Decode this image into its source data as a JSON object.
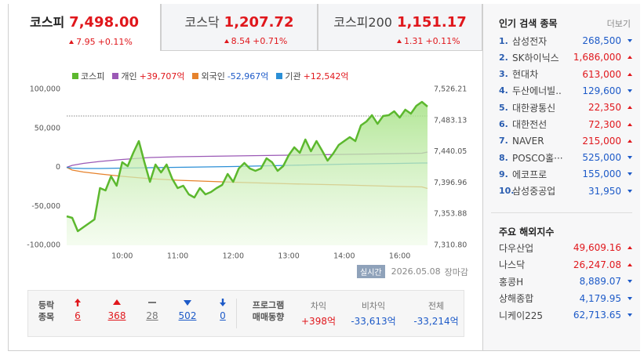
{
  "indices": [
    {
      "name": "코스피",
      "value": "7,498.00",
      "change": "7.95",
      "rate": "+0.11%",
      "direction": "up"
    },
    {
      "name": "코스닥",
      "value": "1,207.72",
      "change": "8.54",
      "rate": "+0.71%",
      "direction": "up"
    },
    {
      "name": "코스피200",
      "value": "1,151.17",
      "change": "1.31",
      "rate": "+0.11%",
      "direction": "up"
    }
  ],
  "chart_data": {
    "type": "line",
    "xlim": [
      0,
      65
    ],
    "xticks": [
      {
        "value": 10,
        "label": "10:00"
      },
      {
        "value": 20,
        "label": "11:00"
      },
      {
        "value": 30,
        "label": "12:00"
      },
      {
        "value": 40,
        "label": "13:00"
      },
      {
        "value": 50,
        "label": "14:00"
      },
      {
        "value": 60,
        "label": "16:00"
      }
    ],
    "ylim": [
      -100000,
      100000
    ],
    "yticks": [
      {
        "value": 100000,
        "label": "100,000"
      },
      {
        "value": 50000,
        "label": "50,000"
      },
      0,
      {
        "value": -50000,
        "label": "-50,000"
      },
      {
        "value": -100000,
        "label": "-100,000"
      }
    ],
    "y2lim": [
      7310.8,
      7526.21
    ],
    "y2ticks": [
      {
        "value": 7526.21,
        "label": "7,526.21"
      },
      {
        "value": 7483.13,
        "label": "7,483.13"
      },
      {
        "value": 7440.05,
        "label": "7,440.05"
      },
      {
        "value": 7396.96,
        "label": "7,396.96"
      },
      {
        "value": 7353.88,
        "label": "7,353.88"
      },
      {
        "value": 7310.8,
        "label": "7,310.80"
      }
    ],
    "reference_line": {
      "value": 7489.4,
      "axis": "y2"
    },
    "series": [
      {
        "name": "코스피",
        "color": "#5cb82e",
        "axis": "y2",
        "fill": true,
        "values": [
          7350.8,
          7348.7,
          7330.3,
          7335.7,
          7341.1,
          7346.5,
          7389.8,
          7386.6,
          7406.1,
          7393.1,
          7425.5,
          7420.1,
          7438.5,
          7454.8,
          7425.5,
          7398.5,
          7422.3,
          7411.5,
          7422.3,
          7402.8,
          7389.8,
          7393.1,
          7381.2,
          7376.8,
          7389.8,
          7381.2,
          7384.4,
          7389.8,
          7394.1,
          7409.3,
          7398.5,
          7416.9,
          7424.5,
          7416.9,
          7413.6,
          7416.9,
          7431.0,
          7425.5,
          7413.6,
          7420.1,
          7435.3,
          7446.1,
          7438.5,
          7456.9,
          7440.7,
          7454.8,
          7441.8,
          7427.7,
          7437.4,
          7449.4,
          7454.8,
          7460.2,
          7454.8,
          7476.4,
          7481.8,
          7490.5,
          7478.6,
          7489.4,
          7490.5,
          7495.9,
          7487.2,
          7498.1,
          7492.7,
          7503.5,
          7508.9,
          7502.4
        ]
      },
      {
        "name": "개인",
        "legend_value": "+39,707억",
        "legend_value_color": "#e0171c",
        "color": "#9b59b6",
        "x": [
          0,
          1,
          3,
          6,
          10,
          15,
          20,
          30,
          40,
          50,
          60,
          64,
          65
        ],
        "values": [
          0,
          2500,
          5000,
          7500,
          10100,
          12600,
          13600,
          14600,
          15600,
          16600,
          17600,
          18100,
          19600
        ]
      },
      {
        "name": "외국인",
        "legend_value": "-52,967억",
        "legend_value_color": "#1d5ac8",
        "color": "#e6822c",
        "x": [
          0,
          1,
          3,
          6,
          10,
          15,
          20,
          30,
          40,
          50,
          60,
          64,
          65
        ],
        "values": [
          0,
          -3500,
          -6000,
          -8500,
          -11600,
          -14600,
          -16600,
          -19100,
          -21100,
          -22600,
          -24600,
          -25100,
          -27100
        ]
      },
      {
        "name": "기관",
        "legend_value": "+12,542억",
        "legend_value_color": "#e0171c",
        "color": "#2b8fd6",
        "x": [
          0,
          1,
          3,
          6,
          10,
          15,
          20,
          30,
          40,
          50,
          60,
          64,
          65
        ],
        "values": [
          0,
          -1000,
          -1500,
          -1500,
          -1000,
          -500,
          0,
          1000,
          2500,
          4000,
          5000,
          5500,
          5500
        ]
      }
    ]
  },
  "status": {
    "badge": "실시간",
    "date": "2026.05.08",
    "state": "장마감"
  },
  "breadth": {
    "label": [
      "등락",
      "종목"
    ],
    "items": [
      {
        "kind": "limit-up",
        "value": 6
      },
      {
        "kind": "up",
        "value": 368
      },
      {
        "kind": "flat",
        "value": 28
      },
      {
        "kind": "down",
        "value": 502
      },
      {
        "kind": "limit-down",
        "value": 0
      }
    ]
  },
  "program": {
    "label": [
      "프로그램",
      "매매동향"
    ],
    "columns": [
      {
        "name": "차익",
        "value": "+398억",
        "direction": "up"
      },
      {
        "name": "비차익",
        "value": "-33,613억",
        "direction": "down"
      },
      {
        "name": "전체",
        "value": "-33,214억",
        "direction": "down"
      }
    ]
  },
  "popular": {
    "title": "인기 검색 종목",
    "more": "더보기",
    "items": [
      {
        "rank": "1.",
        "name": "삼성전자",
        "price": "268,500",
        "direction": "down"
      },
      {
        "rank": "2.",
        "name": "SK하이닉스",
        "price": "1,686,000",
        "direction": "up"
      },
      {
        "rank": "3.",
        "name": "현대차",
        "price": "613,000",
        "direction": "up"
      },
      {
        "rank": "4.",
        "name": "두산에너빌..",
        "price": "129,600",
        "direction": "down"
      },
      {
        "rank": "5.",
        "name": "대한광통신",
        "price": "22,350",
        "direction": "up"
      },
      {
        "rank": "6.",
        "name": "대한전선",
        "price": "72,300",
        "direction": "up"
      },
      {
        "rank": "7.",
        "name": "NAVER",
        "price": "215,000",
        "direction": "up"
      },
      {
        "rank": "8.",
        "name": "POSCO홀···",
        "price": "525,000",
        "direction": "down"
      },
      {
        "rank": "9.",
        "name": "에코프로",
        "price": "155,000",
        "direction": "down"
      },
      {
        "rank": "10.",
        "name": "삼성중공업",
        "price": "31,950",
        "direction": "down"
      }
    ]
  },
  "world": {
    "title": "주요 해외지수",
    "items": [
      {
        "name": "다우산업",
        "value": "49,609.16",
        "direction": "up"
      },
      {
        "name": "나스닥",
        "value": "26,247.08",
        "direction": "up"
      },
      {
        "name": "홍콩H",
        "value": "8,889.07",
        "direction": "down"
      },
      {
        "name": "상해종합",
        "value": "4,179.95",
        "direction": "down"
      },
      {
        "name": "니케이225",
        "value": "62,713.65",
        "direction": "down"
      }
    ]
  }
}
